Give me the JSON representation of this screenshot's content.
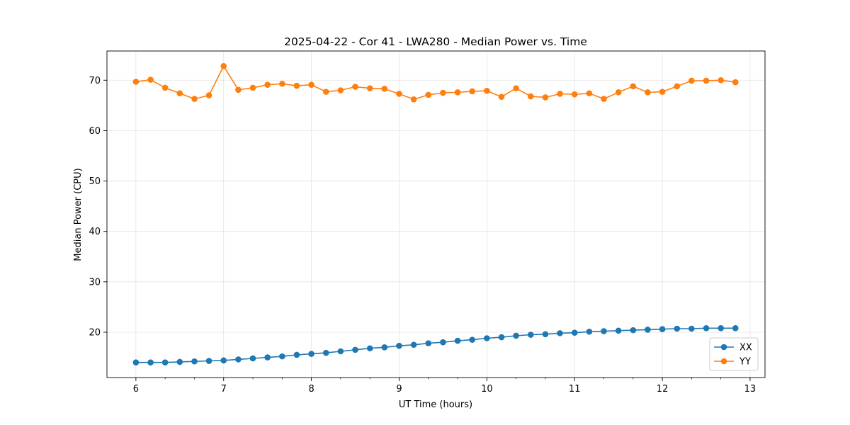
{
  "chart_data": {
    "type": "line",
    "title": "2025-04-22 - Cor 41 - LWA280 - Median Power vs. Time",
    "xlabel": "UT Time (hours)",
    "ylabel": "Median Power (CPU)",
    "xlim": [
      5.67,
      13.17
    ],
    "ylim": [
      11.0,
      75.8
    ],
    "xticks": [
      6,
      7,
      8,
      9,
      10,
      11,
      12,
      13
    ],
    "xtick_labels": [
      "6",
      "7",
      "8",
      "9",
      "10",
      "11",
      "12",
      "13"
    ],
    "yticks": [
      20,
      30,
      40,
      50,
      60,
      70
    ],
    "ytick_labels": [
      "20",
      "30",
      "40",
      "50",
      "60",
      "70"
    ],
    "grid": true,
    "legend_position": "bottom-right",
    "x": [
      6.0,
      6.167,
      6.333,
      6.5,
      6.667,
      6.833,
      7.0,
      7.167,
      7.333,
      7.5,
      7.667,
      7.833,
      8.0,
      8.167,
      8.333,
      8.5,
      8.667,
      8.833,
      9.0,
      9.167,
      9.333,
      9.5,
      9.667,
      9.833,
      10.0,
      10.167,
      10.333,
      10.5,
      10.667,
      10.833,
      11.0,
      11.167,
      11.333,
      11.5,
      11.667,
      11.833,
      12.0,
      12.167,
      12.333,
      12.5,
      12.667,
      12.833
    ],
    "series": [
      {
        "name": "XX",
        "color": "#1f77b4",
        "values": [
          14.0,
          14.0,
          14.0,
          14.1,
          14.2,
          14.3,
          14.4,
          14.6,
          14.8,
          15.0,
          15.2,
          15.5,
          15.7,
          15.9,
          16.2,
          16.5,
          16.8,
          17.0,
          17.3,
          17.5,
          17.8,
          18.0,
          18.3,
          18.5,
          18.8,
          19.0,
          19.3,
          19.5,
          19.6,
          19.8,
          19.9,
          20.1,
          20.2,
          20.3,
          20.4,
          20.5,
          20.6,
          20.7,
          20.7,
          20.8,
          20.8,
          20.8
        ]
      },
      {
        "name": "YY",
        "color": "#ff7f0e",
        "values": [
          69.7,
          70.1,
          68.5,
          67.4,
          66.3,
          67.0,
          72.8,
          68.1,
          68.5,
          69.1,
          69.3,
          68.9,
          69.1,
          67.7,
          68.0,
          68.7,
          68.4,
          68.3,
          67.3,
          66.2,
          67.1,
          67.5,
          67.6,
          67.8,
          67.9,
          66.7,
          68.4,
          66.8,
          66.6,
          67.3,
          67.2,
          67.4,
          66.3,
          67.6,
          68.8,
          67.6,
          67.7,
          68.8,
          69.9,
          69.9,
          70.0,
          69.6
        ]
      }
    ]
  }
}
